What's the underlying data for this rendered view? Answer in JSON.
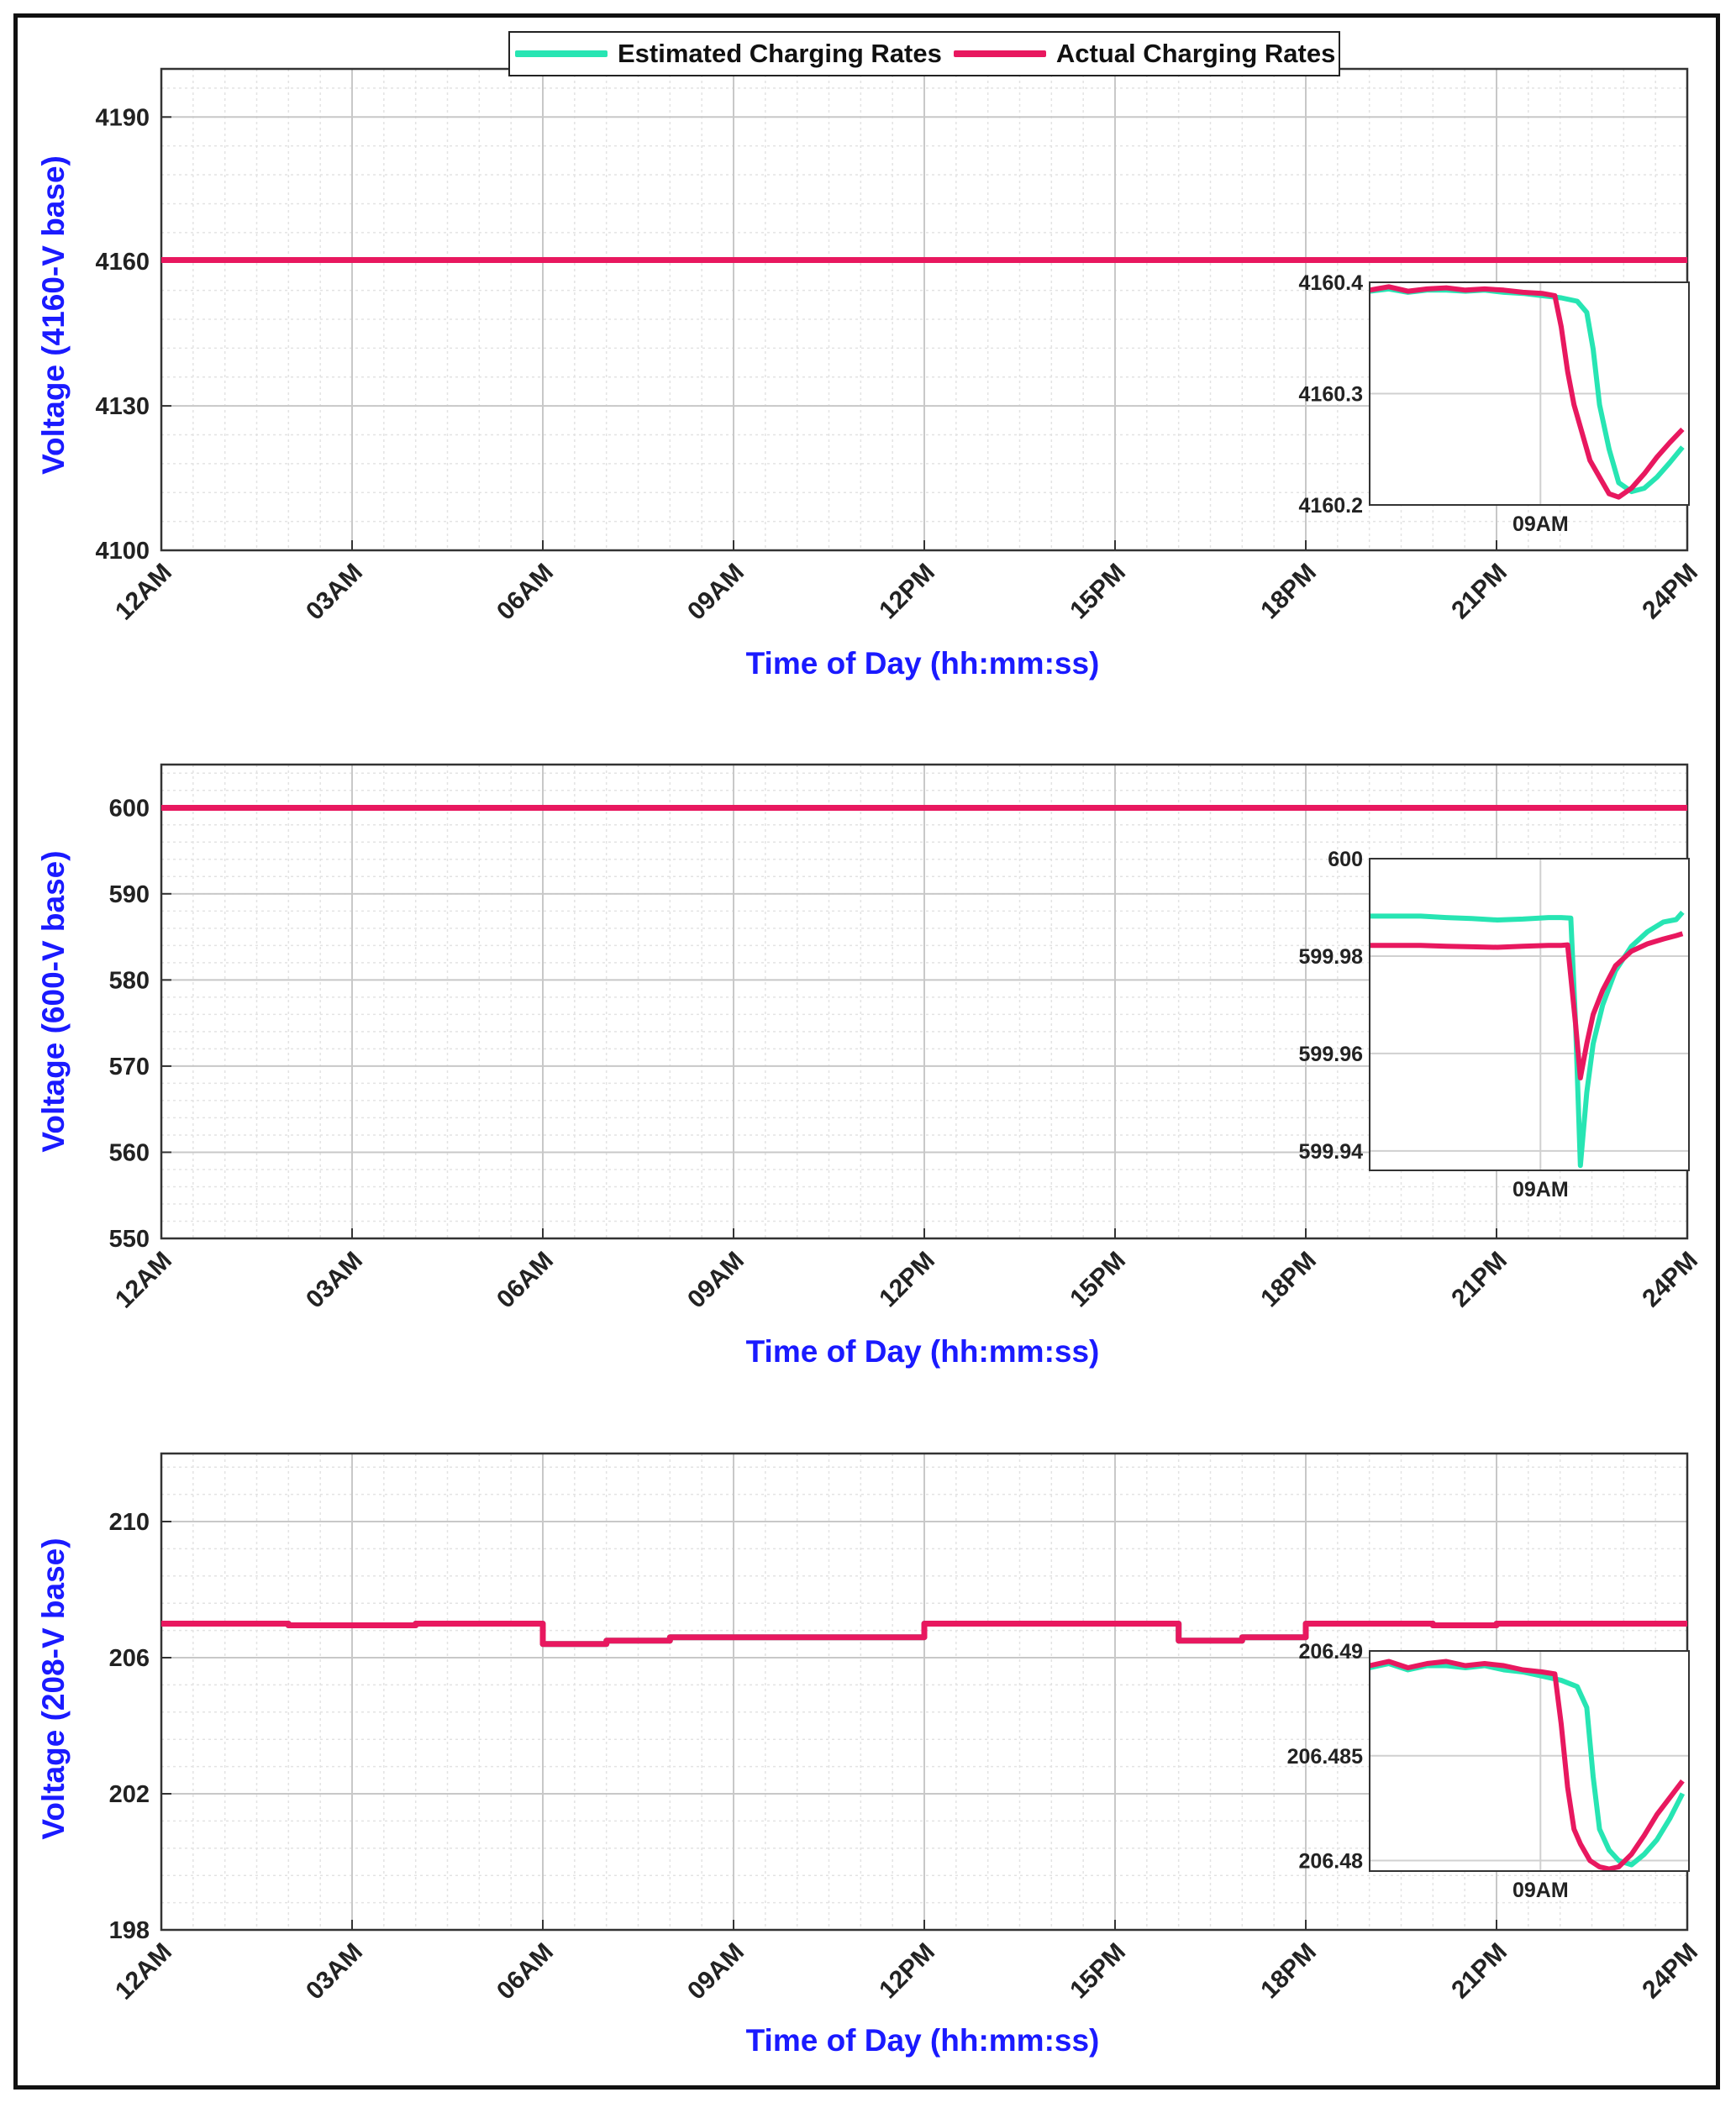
{
  "colors": {
    "estimated": "#27e5b3",
    "actual": "#e8185f",
    "axis_title": "#1a1aff"
  },
  "legend": {
    "estimated_label": "Estimated Charging Rates",
    "actual_label": "Actual Charging Rates",
    "placement": "top-center"
  },
  "chart_data": [
    {
      "type": "line",
      "grid": true,
      "xlabel": "Time of Day (hh:mm:ss)",
      "ylabel": "Voltage (4160-V base)",
      "x_ticks": [
        "12AM",
        "03AM",
        "06AM",
        "09AM",
        "12PM",
        "15PM",
        "18PM",
        "21PM",
        "24PM"
      ],
      "xlim": [
        0,
        24
      ],
      "ylim": [
        4100,
        4200
      ],
      "y_ticks": [
        4100,
        4130,
        4160,
        4190
      ],
      "series": [
        {
          "name": "Estimated Charging Rates",
          "x": [
            0,
            24
          ],
          "y": [
            4160.3,
            4160.3
          ]
        },
        {
          "name": "Actual Charging Rates",
          "x": [
            0,
            24
          ],
          "y": [
            4160.3,
            4160.3
          ]
        }
      ],
      "inset": {
        "x_tick_label": "09AM",
        "y_tick_labels": [
          "4160.4",
          "4160.3",
          "4160.2"
        ],
        "y_ticks": [
          4160.4,
          4160.3,
          4160.2
        ],
        "ylim": [
          4160.2,
          4160.4
        ],
        "series": [
          {
            "name": "Estimated Charging Rates",
            "x": [
              0,
              0.06,
              0.12,
              0.18,
              0.24,
              0.3,
              0.36,
              0.42,
              0.48,
              0.54,
              0.6,
              0.65,
              0.68,
              0.7,
              0.72,
              0.75,
              0.78,
              0.82,
              0.86,
              0.9,
              0.94,
              0.98
            ],
            "y": [
              4160.392,
              4160.394,
              4160.391,
              4160.393,
              4160.393,
              4160.392,
              4160.393,
              4160.391,
              4160.39,
              4160.388,
              4160.386,
              4160.383,
              4160.373,
              4160.34,
              4160.29,
              4160.25,
              4160.22,
              4160.212,
              4160.215,
              4160.225,
              4160.238,
              4160.252
            ]
          },
          {
            "name": "Actual Charging Rates",
            "x": [
              0,
              0.06,
              0.12,
              0.18,
              0.24,
              0.3,
              0.36,
              0.42,
              0.48,
              0.54,
              0.58,
              0.6,
              0.62,
              0.64,
              0.66,
              0.69,
              0.72,
              0.75,
              0.78,
              0.82,
              0.86,
              0.9,
              0.94,
              0.98
            ],
            "y": [
              4160.393,
              4160.396,
              4160.392,
              4160.394,
              4160.395,
              4160.393,
              4160.394,
              4160.393,
              4160.391,
              4160.39,
              4160.388,
              4160.36,
              4160.32,
              4160.29,
              4160.27,
              4160.24,
              4160.225,
              4160.21,
              4160.207,
              4160.215,
              4160.228,
              4160.243,
              4160.256,
              4160.268
            ]
          }
        ]
      }
    },
    {
      "type": "line",
      "grid": true,
      "xlabel": "Time of Day (hh:mm:ss)",
      "ylabel": "Voltage (600-V base)",
      "x_ticks": [
        "12AM",
        "03AM",
        "06AM",
        "09AM",
        "12PM",
        "15PM",
        "18PM",
        "21PM",
        "24PM"
      ],
      "xlim": [
        0,
        24
      ],
      "ylim": [
        550,
        605
      ],
      "y_ticks": [
        550,
        560,
        570,
        580,
        590,
        600
      ],
      "series": [
        {
          "name": "Estimated Charging Rates",
          "x": [
            0,
            24
          ],
          "y": [
            599.98,
            599.98
          ]
        },
        {
          "name": "Actual Charging Rates",
          "x": [
            0,
            24
          ],
          "y": [
            599.98,
            599.98
          ]
        }
      ],
      "inset": {
        "x_tick_label": "09AM",
        "y_tick_labels": [
          "600",
          "599.98",
          "599.96",
          "599.94"
        ],
        "y_ticks": [
          600,
          599.98,
          599.96,
          599.94
        ],
        "ylim": [
          599.936,
          600
        ],
        "series": [
          {
            "name": "Estimated Charging Rates",
            "x": [
              0,
              0.08,
              0.16,
              0.24,
              0.32,
              0.4,
              0.48,
              0.56,
              0.6,
              0.63,
              0.645,
              0.66,
              0.68,
              0.7,
              0.73,
              0.77,
              0.82,
              0.87,
              0.92,
              0.96,
              0.98
            ],
            "y": [
              599.9882,
              599.9882,
              599.9882,
              599.9879,
              599.9877,
              599.9874,
              599.9876,
              599.9879,
              599.9879,
              599.9878,
              599.966,
              599.937,
              599.952,
              599.962,
              599.97,
              599.977,
              599.982,
              599.985,
              599.987,
              599.9875,
              599.989
            ]
          },
          {
            "name": "Actual Charging Rates",
            "x": [
              0,
              0.08,
              0.16,
              0.24,
              0.32,
              0.4,
              0.48,
              0.56,
              0.6,
              0.62,
              0.645,
              0.66,
              0.68,
              0.7,
              0.73,
              0.77,
              0.82,
              0.87,
              0.92,
              0.96,
              0.98
            ],
            "y": [
              599.9822,
              599.9822,
              599.9822,
              599.982,
              599.9819,
              599.9818,
              599.982,
              599.9822,
              599.9822,
              599.9823,
              599.966,
              599.955,
              599.962,
              599.968,
              599.973,
              599.978,
              599.981,
              599.9825,
              599.9835,
              599.9842,
              599.9846
            ]
          }
        ]
      }
    },
    {
      "type": "line",
      "grid": true,
      "xlabel": "Time of Day (hh:mm:ss)",
      "ylabel": "Voltage (208-V base)",
      "x_ticks": [
        "12AM",
        "03AM",
        "06AM",
        "09AM",
        "12PM",
        "15PM",
        "18PM",
        "21PM",
        "24PM"
      ],
      "xlim": [
        0,
        24
      ],
      "ylim": [
        198,
        212
      ],
      "y_ticks": [
        198,
        202,
        206,
        210
      ],
      "series": [
        {
          "name": "Estimated Charging Rates",
          "x": [
            0,
            2,
            2,
            4,
            4,
            6,
            6,
            7,
            7,
            8,
            8,
            12,
            12,
            16,
            16,
            17,
            17,
            18,
            18,
            20,
            20,
            21,
            21,
            24
          ],
          "y": [
            207.0,
            207.0,
            206.95,
            206.95,
            207.0,
            207.0,
            206.4,
            206.4,
            206.5,
            206.5,
            206.6,
            206.6,
            207.0,
            207.0,
            206.5,
            206.5,
            206.6,
            206.6,
            207.0,
            207.0,
            206.95,
            206.95,
            207.0,
            207.0
          ]
        },
        {
          "name": "Actual Charging Rates",
          "x": [
            0,
            2,
            2,
            4,
            4,
            6,
            6,
            7,
            7,
            8,
            8,
            12,
            12,
            16,
            16,
            17,
            17,
            18,
            18,
            20,
            20,
            21,
            21,
            24
          ],
          "y": [
            207.0,
            207.0,
            206.95,
            206.95,
            207.0,
            207.0,
            206.4,
            206.4,
            206.5,
            206.5,
            206.6,
            206.6,
            207.0,
            207.0,
            206.5,
            206.5,
            206.6,
            206.6,
            207.0,
            207.0,
            206.95,
            206.95,
            207.0,
            207.0
          ]
        }
      ],
      "inset": {
        "x_tick_label": "09AM",
        "y_tick_labels": [
          "206.49",
          "206.485",
          "206.48"
        ],
        "y_ticks": [
          206.49,
          206.485,
          206.48
        ],
        "ylim": [
          206.4795,
          206.49
        ],
        "series": [
          {
            "name": "Estimated Charging Rates",
            "x": [
              0,
              0.06,
              0.12,
              0.18,
              0.24,
              0.3,
              0.36,
              0.42,
              0.48,
              0.54,
              0.6,
              0.65,
              0.68,
              0.7,
              0.72,
              0.75,
              0.78,
              0.82,
              0.86,
              0.9,
              0.94,
              0.98
            ],
            "y": [
              206.4892,
              206.4894,
              206.4891,
              206.4893,
              206.4893,
              206.4892,
              206.4893,
              206.4891,
              206.489,
              206.4888,
              206.4886,
              206.4883,
              206.4873,
              206.484,
              206.4815,
              206.4805,
              206.48,
              206.4798,
              206.4803,
              206.481,
              206.482,
              206.4832
            ]
          },
          {
            "name": "Actual Charging Rates",
            "x": [
              0,
              0.06,
              0.12,
              0.18,
              0.24,
              0.3,
              0.36,
              0.42,
              0.48,
              0.54,
              0.58,
              0.6,
              0.62,
              0.64,
              0.66,
              0.69,
              0.72,
              0.75,
              0.78,
              0.82,
              0.86,
              0.9,
              0.94,
              0.98
            ],
            "y": [
              206.4893,
              206.4895,
              206.4892,
              206.4894,
              206.4895,
              206.4893,
              206.4894,
              206.4893,
              206.4891,
              206.489,
              206.4889,
              206.4865,
              206.4835,
              206.4815,
              206.4808,
              206.48,
              206.4797,
              206.4796,
              206.4797,
              206.4803,
              206.4812,
              206.4822,
              206.483,
              206.4838
            ]
          }
        ]
      }
    }
  ]
}
